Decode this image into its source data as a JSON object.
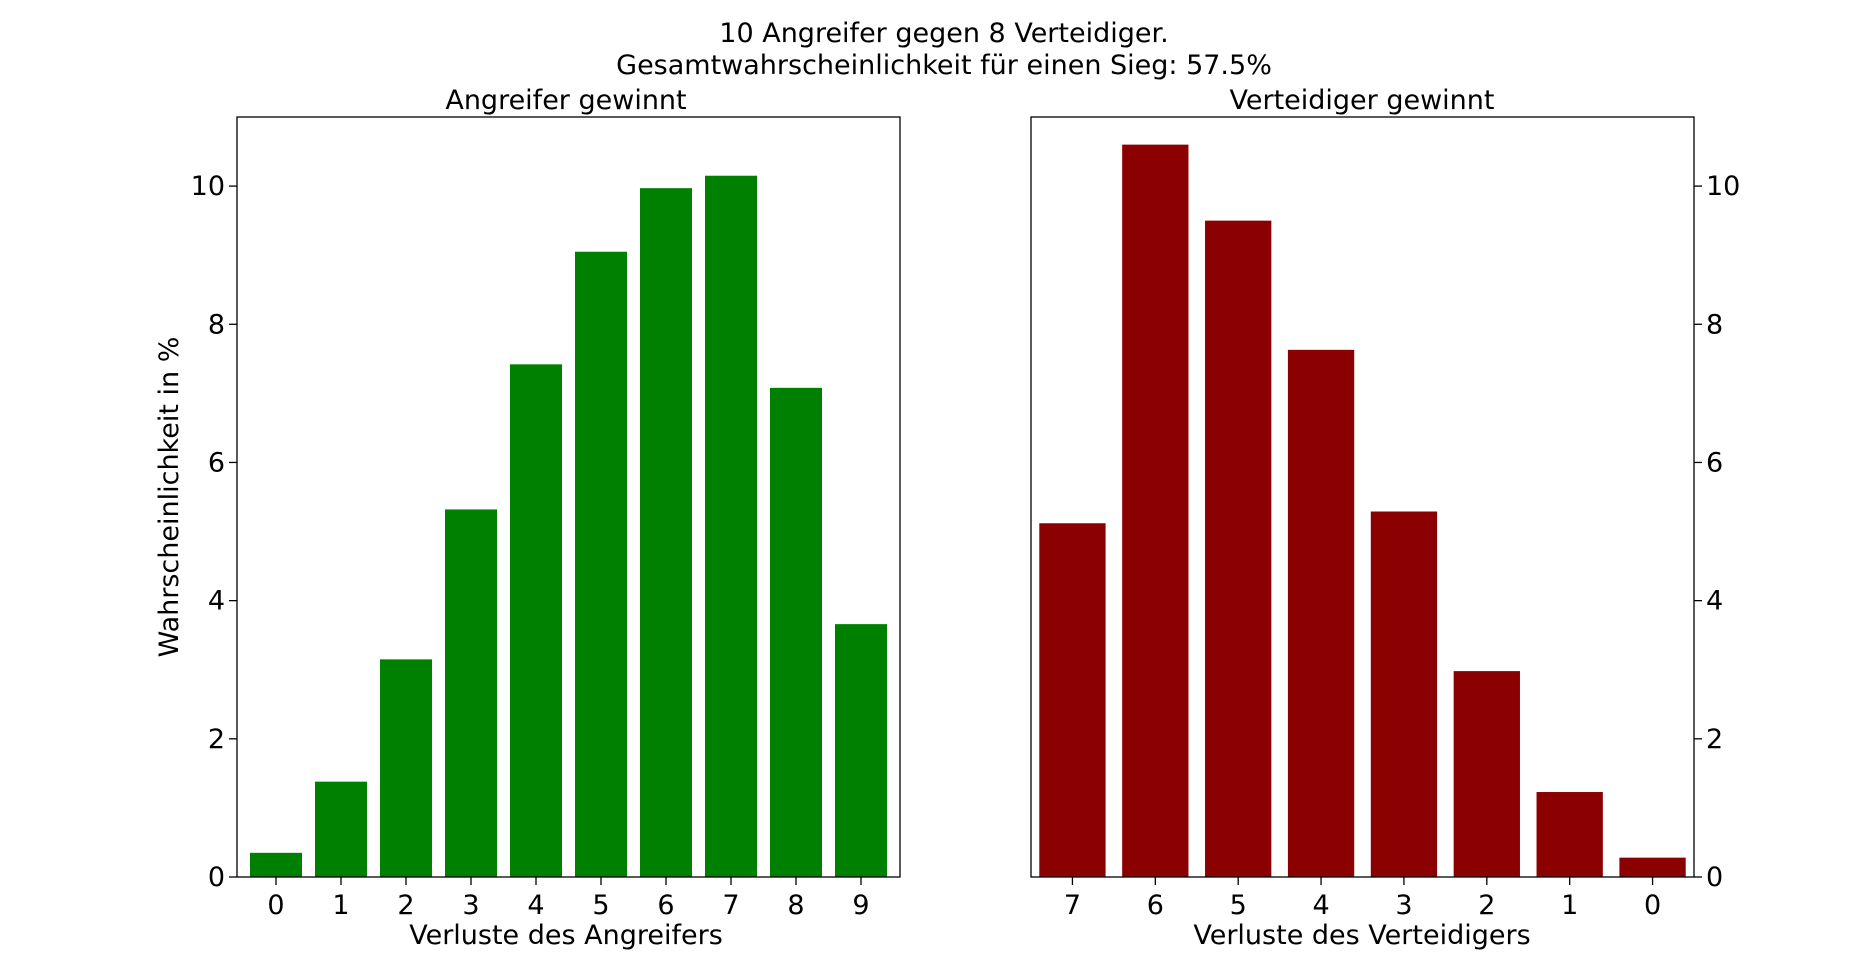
{
  "figure": {
    "title_line1": "10 Angreifer gegen 8 Verteidiger.",
    "title_line2": "Gesamtwahrscheinlichkeit für einen Sieg: 57.5%"
  },
  "chart_data": [
    {
      "type": "bar",
      "title": "Angreifer gewinnt",
      "xlabel": "Verluste des Angreifers",
      "ylabel": "Wahrscheinlichkeit in %",
      "categories": [
        "0",
        "1",
        "2",
        "3",
        "4",
        "5",
        "6",
        "7",
        "8",
        "9"
      ],
      "values": [
        0.35,
        1.38,
        3.15,
        5.32,
        7.42,
        9.05,
        9.97,
        10.15,
        7.08,
        3.66
      ],
      "ylim": [
        0,
        11
      ],
      "yticks": [
        "0",
        "2",
        "4",
        "6",
        "8",
        "10"
      ],
      "y_axis_side": "left",
      "color": "#008000",
      "grid": false
    },
    {
      "type": "bar",
      "title": "Verteidiger gewinnt",
      "xlabel": "Verluste des Verteidigers",
      "ylabel": "",
      "categories": [
        "7",
        "6",
        "5",
        "4",
        "3",
        "2",
        "1",
        "0"
      ],
      "values": [
        5.12,
        10.6,
        9.5,
        7.63,
        5.29,
        2.98,
        1.23,
        0.28
      ],
      "ylim": [
        0,
        11
      ],
      "yticks": [
        "0",
        "2",
        "4",
        "6",
        "8",
        "10"
      ],
      "y_axis_side": "right",
      "color": "#8b0000",
      "grid": false
    }
  ]
}
